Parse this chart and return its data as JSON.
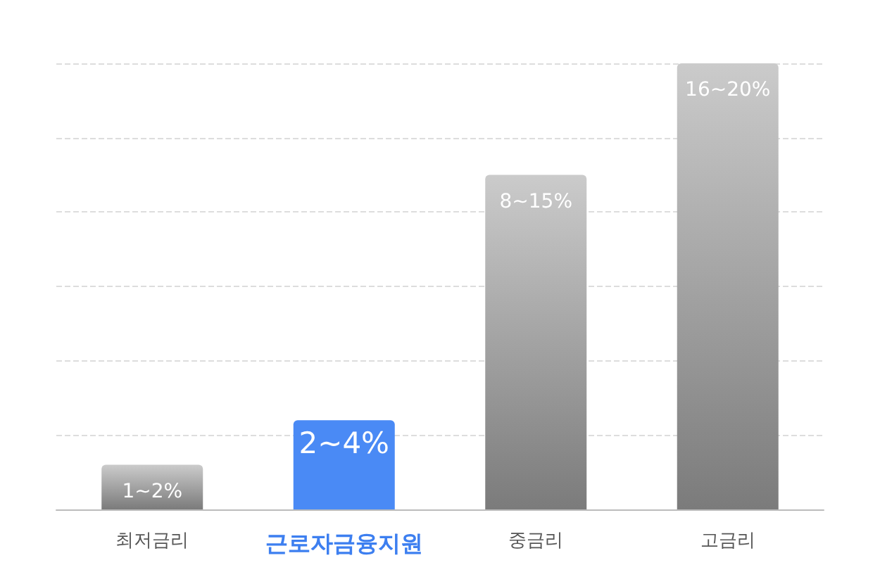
{
  "chart_data": {
    "type": "bar",
    "tick_labels": "x",
    "categories": [
      "최저금리",
      "근로자금융지원",
      "중금리",
      "고금리"
    ],
    "values": [
      2,
      4,
      15,
      20
    ],
    "colors": [
      "#8c8c8c",
      "#4a8af5",
      "#8c8c8c",
      "#8c8c8c"
    ],
    "value_labels": [
      "1~2%",
      "2~4%",
      "8~15%",
      "16~20%"
    ],
    "grid": "y"
  }
}
